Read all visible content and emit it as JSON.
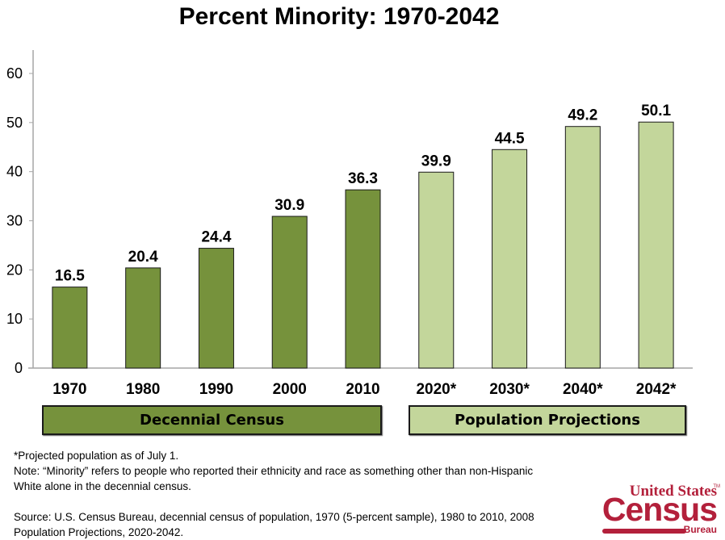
{
  "chart_data": {
    "type": "bar",
    "title": "Percent Minority: 1970-2042",
    "xlabel": "",
    "ylabel": "",
    "ylim": [
      0,
      60
    ],
    "yticks": [
      0,
      10,
      20,
      30,
      40,
      50,
      60
    ],
    "grid": false,
    "categories": [
      "1970",
      "1980",
      "1990",
      "2000",
      "2010",
      "2020*",
      "2030*",
      "2040*",
      "2042*"
    ],
    "values": [
      16.5,
      20.4,
      24.4,
      30.9,
      36.3,
      39.9,
      44.5,
      49.2,
      50.1
    ],
    "value_labels": [
      "16.5",
      "20.4",
      "24.4",
      "30.9",
      "36.3",
      "39.9",
      "44.5",
      "49.2",
      "50.1"
    ],
    "series_groups": [
      {
        "name": "Decennial Census",
        "categories": [
          "1970",
          "1980",
          "1990",
          "2000",
          "2010"
        ],
        "color": "#76923c"
      },
      {
        "name": "Population Projections",
        "categories": [
          "2020*",
          "2030*",
          "2040*",
          "2042*"
        ],
        "color": "#c3d69b"
      }
    ],
    "bar_colors": [
      "#76923c",
      "#76923c",
      "#76923c",
      "#76923c",
      "#76923c",
      "#c3d69b",
      "#c3d69b",
      "#c3d69b",
      "#c3d69b"
    ]
  },
  "group_labels": {
    "census": "Decennial Census",
    "projections": "Population Projections"
  },
  "notes": {
    "projected": "*Projected population as of July 1.",
    "note": "Note: “Minority” refers to people who reported their ethnicity and race as something other than non-Hispanic White alone in the decennial census.",
    "source": "Source: U.S. Census Bureau, decennial census of population, 1970 (5-percent sample), 1980 to 2010, 2008 Population Projections, 2020-2042."
  },
  "logo": {
    "line1": "United States",
    "line2": "Census",
    "line3": "Bureau",
    "tm": "TM",
    "color": "#b3203b"
  }
}
